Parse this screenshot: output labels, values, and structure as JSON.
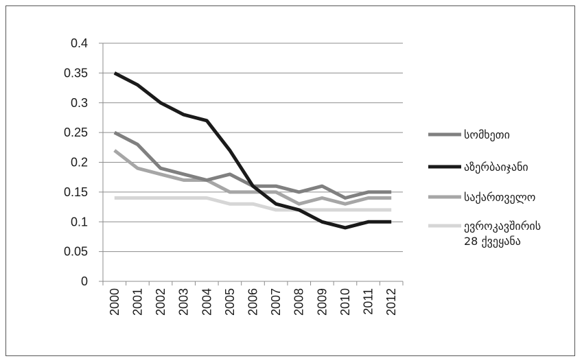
{
  "chart_data": {
    "type": "line",
    "categories": [
      "2000",
      "2001",
      "2002",
      "2003",
      "2004",
      "2005",
      "2006",
      "2007",
      "2008",
      "2009",
      "2010",
      "2011",
      "2012"
    ],
    "series": [
      {
        "name": "სომხეთი",
        "color": "#808080",
        "values": [
          0.25,
          0.23,
          0.19,
          0.18,
          0.17,
          0.18,
          0.16,
          0.16,
          0.15,
          0.16,
          0.14,
          0.15,
          0.15
        ]
      },
      {
        "name": "აზერბაიჯანი",
        "color": "#1a1a1a",
        "values": [
          0.35,
          0.33,
          0.3,
          0.28,
          0.27,
          0.22,
          0.16,
          0.13,
          0.12,
          0.1,
          0.09,
          0.1,
          0.1
        ]
      },
      {
        "name": "საქართველო",
        "color": "#a6a6a6",
        "values": [
          0.22,
          0.19,
          0.18,
          0.17,
          0.17,
          0.15,
          0.15,
          0.15,
          0.13,
          0.14,
          0.13,
          0.14,
          0.14
        ]
      },
      {
        "name": "ევროკავშირის\n28 ქვეყანა",
        "color": "#d6d6d6",
        "values": [
          0.14,
          0.14,
          0.14,
          0.14,
          0.14,
          0.13,
          0.13,
          0.12,
          0.12,
          0.12,
          0.12,
          0.12,
          0.12
        ]
      }
    ],
    "yticks": [
      "0",
      "0.05",
      "0.1",
      "0.15",
      "0.2",
      "0.25",
      "0.3",
      "0.35",
      "0.4"
    ],
    "ylim": [
      0,
      0.4
    ],
    "title": "",
    "xlabel": "",
    "ylabel": "",
    "grid": true,
    "legend": "right"
  }
}
